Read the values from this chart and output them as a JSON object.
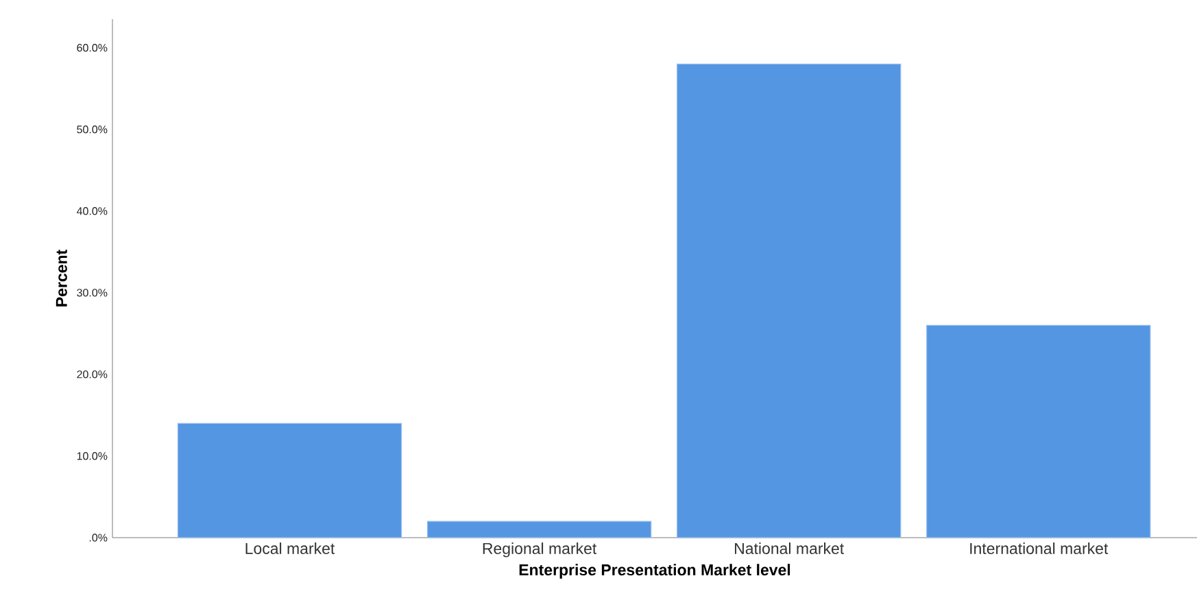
{
  "chart_data": {
    "type": "bar",
    "xlabel": "Enterprise Presentation Market level",
    "ylabel": "Percent",
    "categories": [
      "Local market",
      "Regional market",
      "National market",
      "International market"
    ],
    "values": [
      14.0,
      2.0,
      58.0,
      26.0
    ],
    "color": "#5596e3",
    "ylim": [
      0,
      63.5
    ],
    "yticks": [
      {
        "value": 0,
        "label": ".0%"
      },
      {
        "value": 10,
        "label": "10.0%"
      },
      {
        "value": 20,
        "label": "20.0%"
      },
      {
        "value": 30,
        "label": "30.0%"
      },
      {
        "value": 40,
        "label": "40.0%"
      },
      {
        "value": 50,
        "label": "50.0%"
      },
      {
        "value": 60,
        "label": "60.0%"
      }
    ],
    "grid": false
  }
}
